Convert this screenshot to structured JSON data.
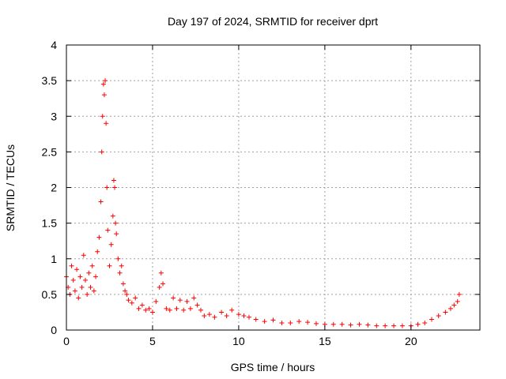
{
  "chart_data": {
    "type": "scatter",
    "title": "Day 197 of 2024, SRMTID for receiver dprt",
    "xlabel": "GPS time / hours",
    "ylabel": "SRMTID / TECUs",
    "xlim": [
      0,
      24
    ],
    "ylim": [
      0,
      4
    ],
    "x_ticks": [
      0,
      5,
      10,
      15,
      20
    ],
    "x_tick_labels": [
      "0",
      "5",
      "10",
      "15",
      "20"
    ],
    "y_ticks": [
      0,
      0.5,
      1,
      1.5,
      2,
      2.5,
      3,
      3.5,
      4
    ],
    "y_tick_labels": [
      "0",
      "0.5",
      "1",
      "1.5",
      "2",
      "2.5",
      "3",
      "3.5",
      "4"
    ],
    "grid": true,
    "marker": "+",
    "series": [
      {
        "name": "SRMTID",
        "color": "#ff0000",
        "x": [
          0.0,
          0.1,
          0.2,
          0.3,
          0.4,
          0.5,
          0.6,
          0.7,
          0.8,
          0.9,
          1.0,
          1.1,
          1.2,
          1.3,
          1.4,
          1.5,
          1.6,
          1.7,
          1.8,
          1.9,
          2.0,
          2.05,
          2.1,
          2.15,
          2.2,
          2.25,
          2.3,
          2.35,
          2.4,
          2.5,
          2.6,
          2.7,
          2.75,
          2.8,
          2.85,
          2.9,
          3.0,
          3.1,
          3.2,
          3.3,
          3.4,
          3.5,
          3.6,
          3.8,
          4.0,
          4.2,
          4.4,
          4.6,
          4.8,
          5.0,
          5.2,
          5.4,
          5.5,
          5.6,
          5.8,
          6.0,
          6.2,
          6.4,
          6.6,
          6.8,
          7.0,
          7.2,
          7.4,
          7.6,
          7.8,
          8.0,
          8.3,
          8.6,
          9.0,
          9.3,
          9.6,
          10.0,
          10.3,
          10.6,
          11.0,
          11.5,
          12.0,
          12.5,
          13.0,
          13.5,
          14.0,
          14.5,
          15.0,
          15.5,
          16.0,
          16.5,
          17.0,
          17.5,
          18.0,
          18.5,
          19.0,
          19.5,
          20.0,
          20.4,
          20.8,
          21.2,
          21.6,
          22.0,
          22.3,
          22.5,
          22.7,
          22.8
        ],
        "y": [
          0.75,
          0.6,
          0.5,
          0.9,
          0.7,
          0.55,
          0.85,
          0.45,
          0.75,
          0.6,
          1.05,
          0.7,
          0.5,
          0.8,
          0.6,
          0.9,
          0.55,
          0.75,
          1.1,
          1.3,
          1.8,
          2.5,
          3.0,
          3.45,
          3.3,
          3.5,
          2.9,
          2.0,
          1.4,
          0.9,
          1.2,
          1.6,
          2.1,
          2.0,
          1.5,
          1.35,
          1.0,
          0.8,
          0.9,
          0.65,
          0.55,
          0.5,
          0.42,
          0.38,
          0.45,
          0.3,
          0.35,
          0.28,
          0.3,
          0.25,
          0.4,
          0.6,
          0.8,
          0.65,
          0.3,
          0.28,
          0.45,
          0.3,
          0.42,
          0.28,
          0.4,
          0.3,
          0.45,
          0.35,
          0.28,
          0.2,
          0.22,
          0.18,
          0.25,
          0.2,
          0.28,
          0.22,
          0.2,
          0.18,
          0.15,
          0.12,
          0.14,
          0.1,
          0.1,
          0.12,
          0.11,
          0.09,
          0.08,
          0.08,
          0.08,
          0.07,
          0.08,
          0.07,
          0.06,
          0.06,
          0.06,
          0.06,
          0.06,
          0.08,
          0.1,
          0.15,
          0.2,
          0.25,
          0.3,
          0.35,
          0.4,
          0.5
        ]
      }
    ]
  }
}
